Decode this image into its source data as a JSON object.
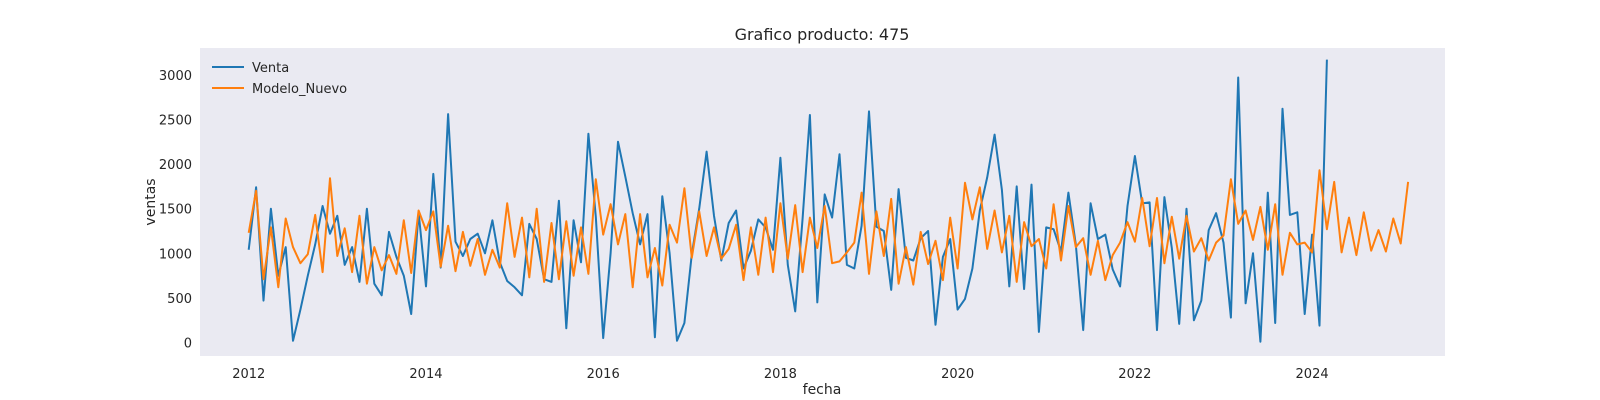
{
  "chart_data": {
    "type": "line",
    "title": "Grafico producto: 475",
    "xlabel": "fecha",
    "ylabel": "ventas",
    "xlim": [
      2011.45,
      2025.5
    ],
    "ylim": [
      -150,
      3300
    ],
    "xticks": [
      2012,
      2014,
      2016,
      2018,
      2020,
      2022,
      2024
    ],
    "yticks": [
      0,
      500,
      1000,
      1500,
      2000,
      2500,
      3000
    ],
    "grid": false,
    "legend": "top-left",
    "background": "#eaeaf2",
    "series": [
      {
        "name": "Venta",
        "color": "#1f77b4",
        "start": "2012-01",
        "values": [
          1040,
          1740,
          470,
          1500,
          750,
          1070,
          20,
          370,
          750,
          1100,
          1530,
          1220,
          1420,
          870,
          1070,
          680,
          1500,
          660,
          530,
          1240,
          960,
          750,
          320,
          1460,
          630,
          1890,
          840,
          2560,
          1130,
          970,
          1160,
          1220,
          1000,
          1370,
          900,
          690,
          620,
          530,
          1330,
          1160,
          710,
          680,
          1590,
          160,
          1370,
          900,
          2340,
          1410,
          50,
          1000,
          2250,
          1860,
          1450,
          1100,
          1440,
          60,
          1640,
          1000,
          20,
          220,
          990,
          1500,
          2140,
          1420,
          920,
          1340,
          1480,
          830,
          1030,
          1380,
          1290,
          1040,
          2070,
          870,
          350,
          1390,
          2550,
          450,
          1660,
          1400,
          2110,
          870,
          830,
          1310,
          2590,
          1300,
          1250,
          590,
          1720,
          950,
          920,
          1170,
          1250,
          200,
          960,
          1160,
          370,
          490,
          830,
          1480,
          1850,
          2330,
          1710,
          630,
          1750,
          600,
          1770,
          120,
          1290,
          1270,
          1020,
          1680,
          1100,
          140,
          1560,
          1160,
          1210,
          820,
          630,
          1530,
          2090,
          1560,
          1570,
          140,
          1630,
          1060,
          210,
          1500,
          250,
          470,
          1260,
          1450,
          1120,
          280,
          2970,
          440,
          1000,
          10,
          1680,
          220,
          2620,
          1430,
          1460,
          320,
          1210,
          190,
          3170
        ]
      },
      {
        "name": "Modelo_Nuevo",
        "color": "#ff7f0e",
        "start": "2012-01",
        "values": [
          1230,
          1700,
          710,
          1290,
          620,
          1390,
          1070,
          890,
          990,
          1430,
          790,
          1840,
          970,
          1280,
          790,
          1420,
          660,
          1070,
          810,
          980,
          770,
          1370,
          780,
          1480,
          1260,
          1470,
          850,
          1310,
          800,
          1240,
          860,
          1160,
          760,
          1040,
          840,
          1560,
          960,
          1400,
          730,
          1500,
          680,
          1340,
          710,
          1360,
          750,
          1290,
          770,
          1830,
          1210,
          1550,
          1100,
          1440,
          620,
          1440,
          730,
          1060,
          640,
          1320,
          1120,
          1730,
          950,
          1470,
          970,
          1290,
          940,
          1050,
          1320,
          700,
          1290,
          760,
          1400,
          790,
          1560,
          940,
          1540,
          790,
          1400,
          1060,
          1530,
          890,
          910,
          1010,
          1120,
          1680,
          770,
          1470,
          970,
          1610,
          660,
          1070,
          650,
          1240,
          880,
          1140,
          700,
          1400,
          830,
          1790,
          1380,
          1740,
          1050,
          1480,
          1010,
          1420,
          680,
          1350,
          1080,
          1160,
          830,
          1550,
          920,
          1530,
          1070,
          1170,
          760,
          1140,
          700,
          980,
          1120,
          1350,
          1130,
          1620,
          1080,
          1620,
          890,
          1410,
          940,
          1420,
          1020,
          1170,
          920,
          1120,
          1200,
          1830,
          1330,
          1480,
          1150,
          1520,
          1040,
          1550,
          760,
          1230,
          1100,
          1120,
          1010,
          1930,
          1270,
          1800,
          1010,
          1400,
          980,
          1460,
          1030,
          1260,
          1020,
          1390,
          1110,
          1800
        ]
      }
    ]
  }
}
